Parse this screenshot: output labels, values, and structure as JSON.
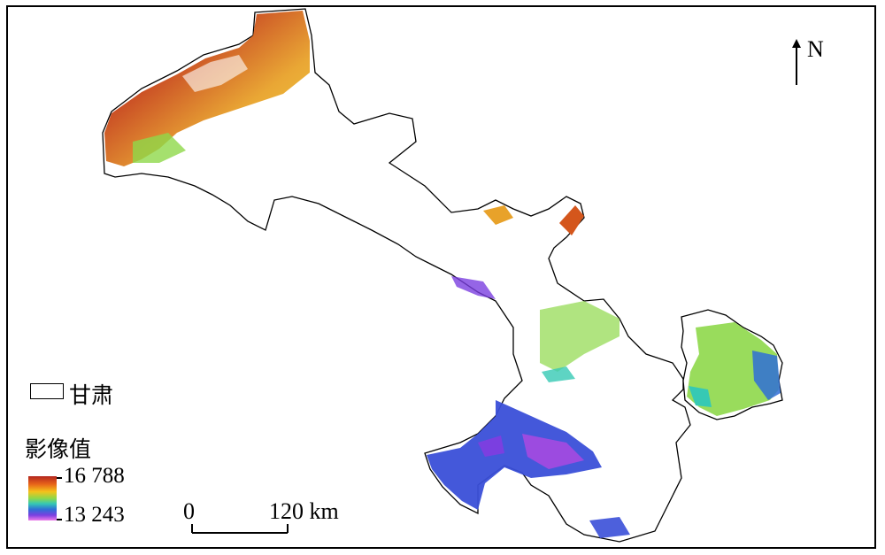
{
  "map": {
    "north": "N",
    "region_label": "甘肃",
    "legend_title": "影像值",
    "legend_high": "16 788",
    "legend_low": "13 243",
    "scale_start": "0",
    "scale_end": "120 km"
  },
  "colors": {
    "high": "#b3261e",
    "mid_high": "#f5c21b",
    "mid": "#8ed84a",
    "mid_low": "#2f6fd6",
    "low": "#f07ae8",
    "outline": "#000000"
  }
}
